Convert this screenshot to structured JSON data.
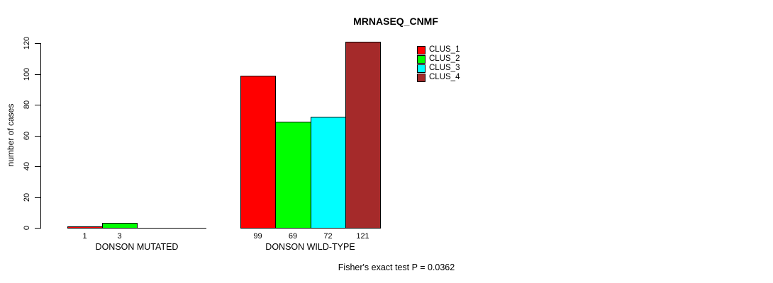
{
  "chart_data": {
    "type": "bar",
    "title": "MRNASEQ_CNMF",
    "xlabel": "",
    "ylabel": "number of cases",
    "ylim": [
      0,
      120
    ],
    "yticks": [
      0,
      20,
      40,
      60,
      80,
      100,
      120
    ],
    "grid": false,
    "legend_position": "top-right",
    "categories": [
      "DONSON MUTATED",
      "DONSON WILD-TYPE"
    ],
    "series": [
      {
        "name": "CLUS_1",
        "color": "#FF0000",
        "values": [
          1,
          99
        ]
      },
      {
        "name": "CLUS_2",
        "color": "#00FF00",
        "values": [
          3,
          69
        ]
      },
      {
        "name": "CLUS_3",
        "color": "#00FFFF",
        "values": [
          0,
          72
        ]
      },
      {
        "name": "CLUS_4",
        "color": "#A52A2A",
        "values": [
          0,
          121
        ]
      }
    ],
    "bar_labels": [
      [
        "1",
        "3",
        "",
        ""
      ],
      [
        "99",
        "69",
        "72",
        "121"
      ]
    ],
    "annotation": "Fisher's exact test P = 0.0362"
  },
  "legend": {
    "items": [
      {
        "label": "CLUS_1",
        "color": "#FF0000"
      },
      {
        "label": "CLUS_2",
        "color": "#00FF00"
      },
      {
        "label": "CLUS_3",
        "color": "#00FFFF"
      },
      {
        "label": "CLUS_4",
        "color": "#A52A2A"
      }
    ]
  },
  "colors": {
    "axis": "#000000",
    "background": "#FFFFFF",
    "text": "#000000"
  }
}
